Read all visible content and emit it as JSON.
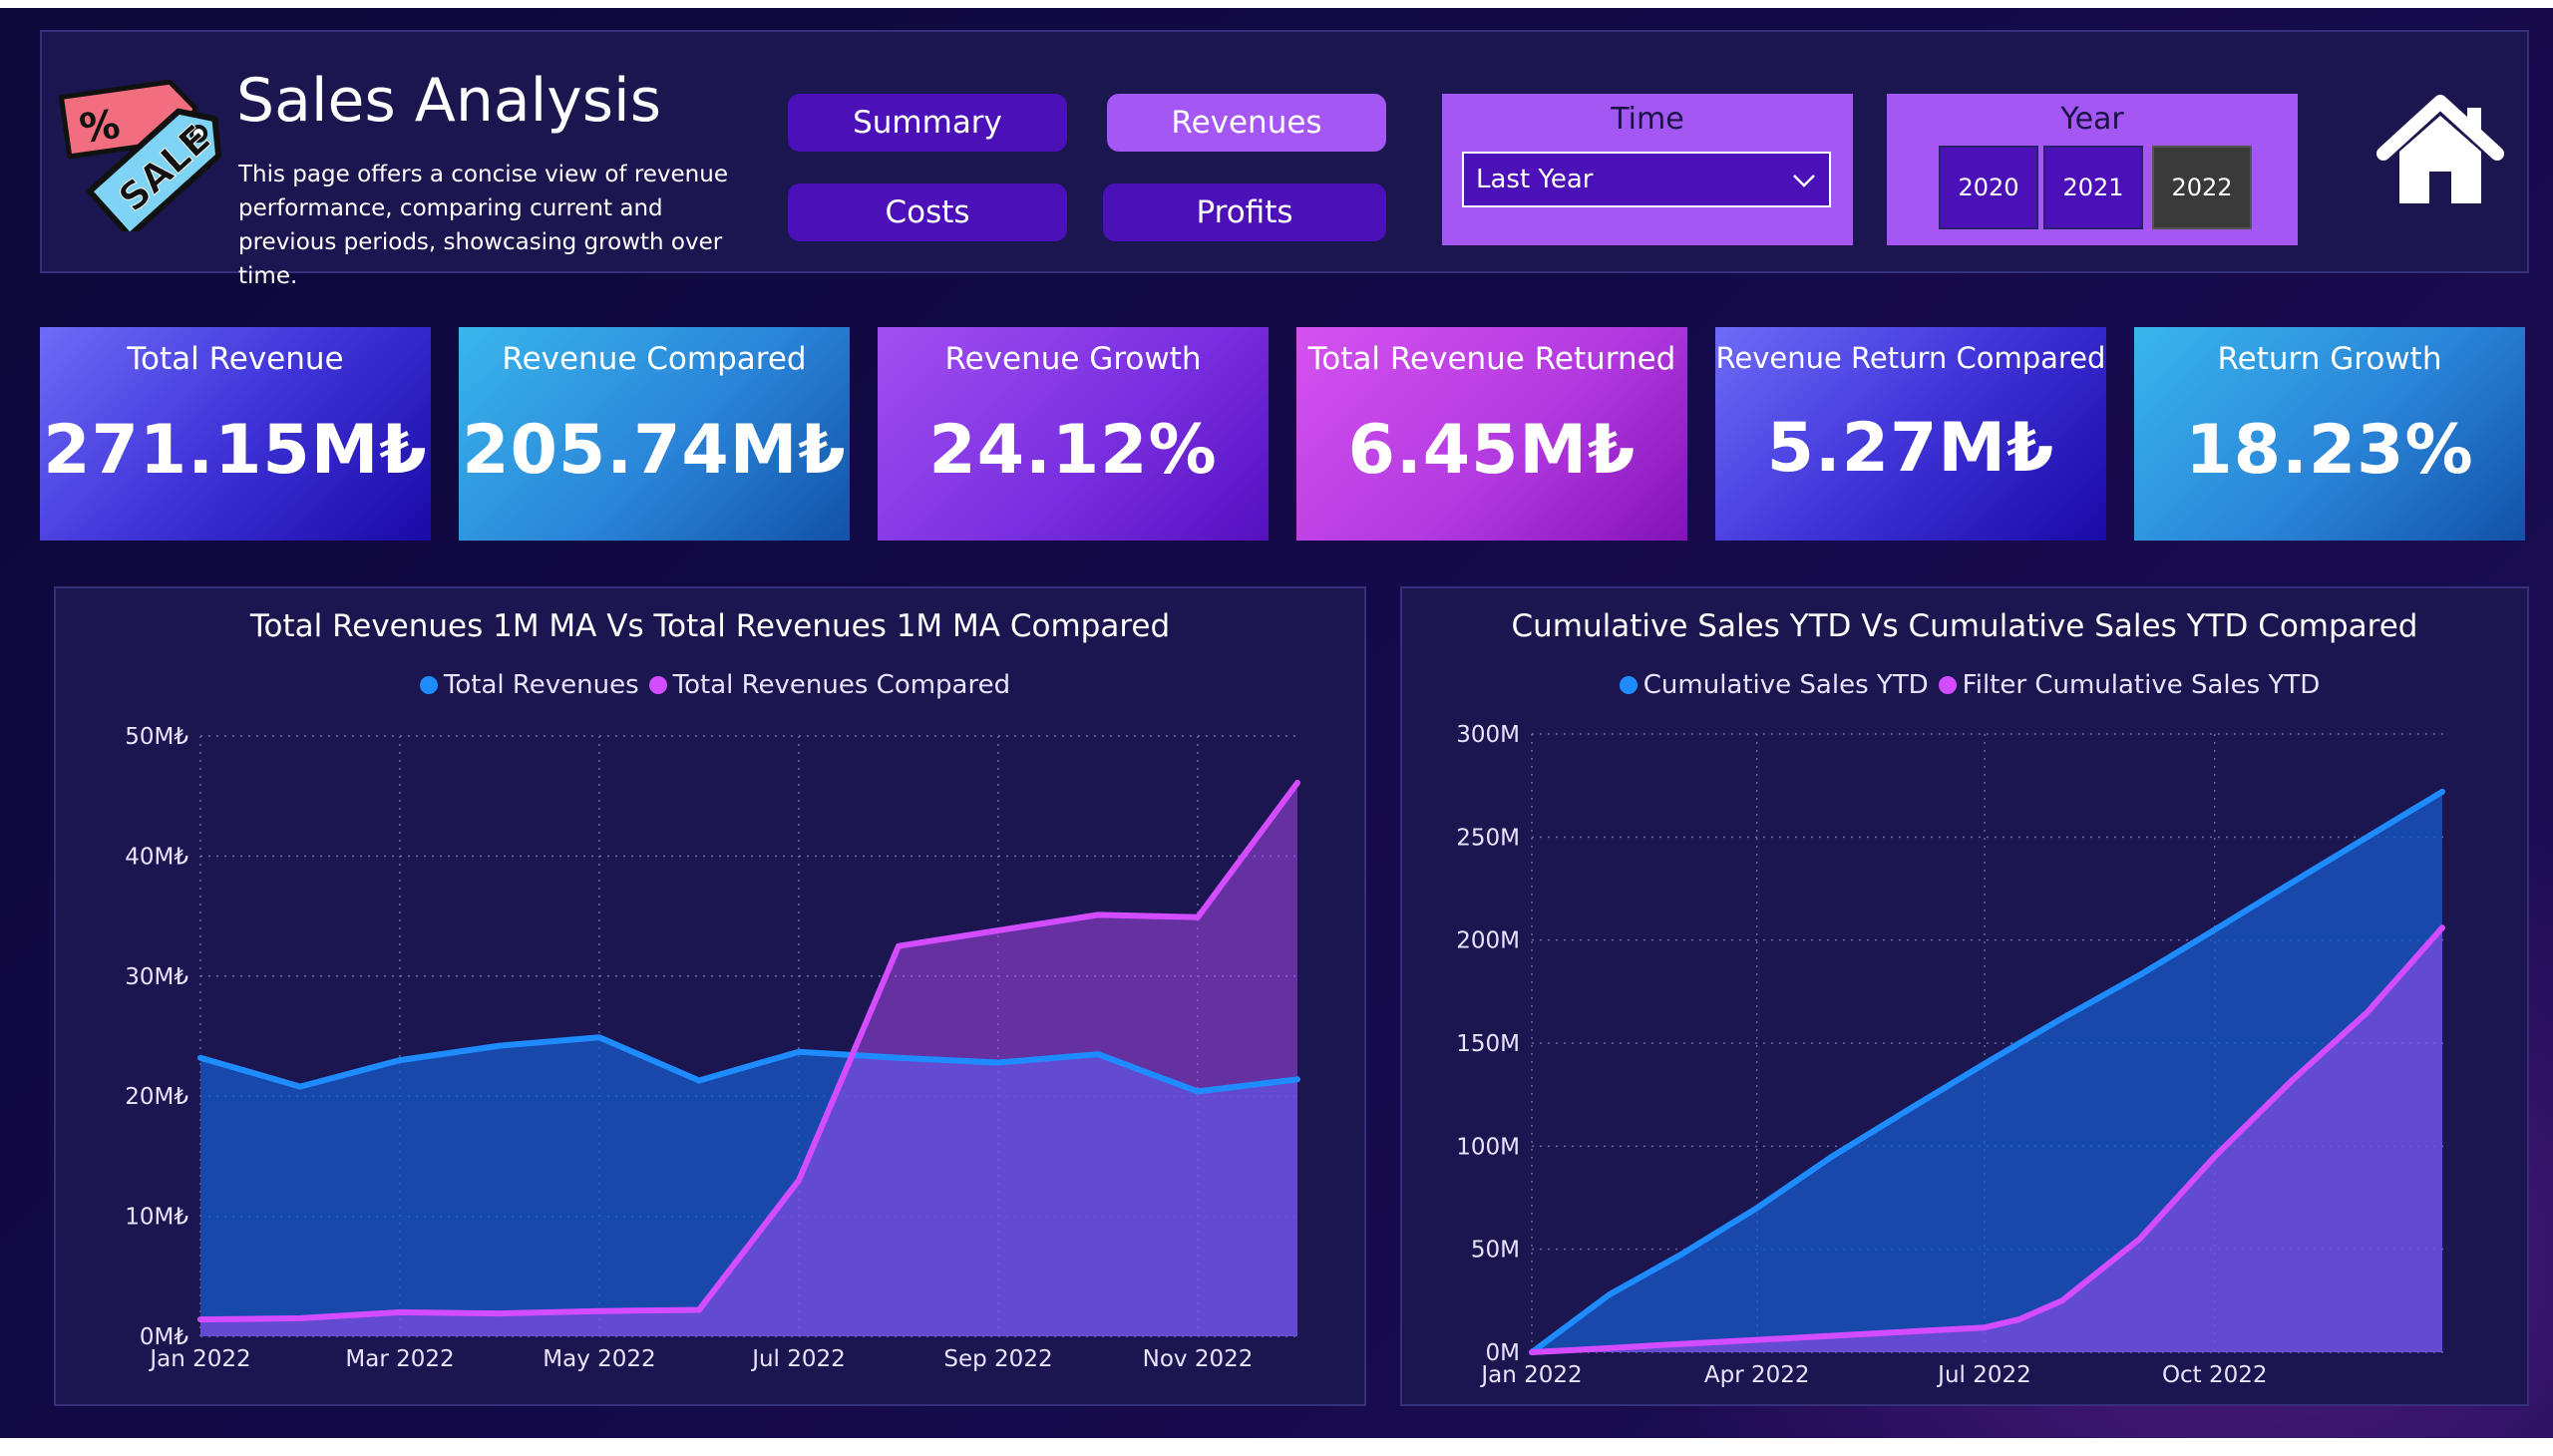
{
  "header": {
    "title": "Sales Analysis",
    "description": "This page offers a concise view of revenue performance, comparing current and previous periods, showcasing growth over time.",
    "logo_icon": "sale-tag-icon",
    "home_icon": "home-icon"
  },
  "nav": {
    "summary": "Summary",
    "revenues": "Revenues",
    "costs": "Costs",
    "profits": "Profits",
    "active": "Revenues"
  },
  "filters": {
    "time_label": "Time",
    "time_value": "Last Year",
    "year_label": "Year",
    "years": [
      "2020",
      "2021",
      "2022"
    ],
    "selected_year": "2022"
  },
  "kpis": [
    {
      "label": "Total Revenue",
      "value": "271.15M₺"
    },
    {
      "label": "Revenue Compared",
      "value": "205.74M₺"
    },
    {
      "label": "Revenue Growth",
      "value": "24.12%"
    },
    {
      "label": "Total Revenue Returned",
      "value": "6.45M₺"
    },
    {
      "label": "Revenue Return Compared",
      "value": "5.27M₺"
    },
    {
      "label": "Return Growth",
      "value": "18.23%"
    }
  ],
  "colors": {
    "series_blue": "#1e8cff",
    "series_pink": "#d44cff",
    "accent_purple": "#a557f4",
    "button_purple": "#4b10b8"
  },
  "chart_data": [
    {
      "type": "area",
      "title": "Total Revenues 1M MA Vs Total Revenues 1M MA Compared",
      "xlabel": "",
      "ylabel": "",
      "x": [
        "Jan 2022",
        "Feb 2022",
        "Mar 2022",
        "Apr 2022",
        "May 2022",
        "Jun 2022",
        "Jul 2022",
        "Aug 2022",
        "Sep 2022",
        "Oct 2022",
        "Nov 2022",
        "Dec 2022"
      ],
      "x_tick_labels": [
        "Jan 2022",
        "Mar 2022",
        "May 2022",
        "Jul 2022",
        "Sep 2022",
        "Nov 2022"
      ],
      "y_tick_labels": [
        "0M₺",
        "10M₺",
        "20M₺",
        "30M₺",
        "40M₺",
        "50M₺"
      ],
      "ylim": [
        0,
        50
      ],
      "grid": true,
      "legend_position": "top-center",
      "series": [
        {
          "name": "Total Revenues",
          "color": "#1e8cff",
          "values": [
            23.2,
            20.8,
            23.0,
            24.2,
            24.9,
            21.3,
            23.7,
            23.2,
            22.8,
            23.5,
            20.4,
            21.4
          ]
        },
        {
          "name": "Total Revenues Compared",
          "color": "#d44cff",
          "values": [
            1.4,
            1.5,
            2.0,
            1.9,
            2.1,
            2.2,
            13.0,
            32.5,
            33.8,
            35.1,
            34.9,
            46.1
          ]
        }
      ]
    },
    {
      "type": "area",
      "title": "Cumulative Sales YTD Vs Cumulative Sales YTD Compared",
      "xlabel": "",
      "ylabel": "",
      "x": [
        "2022-01-01",
        "2022-02-01",
        "2022-03-01",
        "2022-04-01",
        "2022-05-01",
        "2022-06-01",
        "2022-07-01",
        "2022-07-15",
        "2022-08-01",
        "2022-09-01",
        "2022-10-01",
        "2022-11-01",
        "2022-12-01",
        "2022-12-31"
      ],
      "x_tick_labels": [
        "Jan 2022",
        "Apr 2022",
        "Jul 2022",
        "Oct 2022"
      ],
      "y_tick_labels": [
        "0M",
        "50M",
        "100M",
        "150M",
        "200M",
        "250M",
        "300M"
      ],
      "ylim": [
        0,
        300
      ],
      "grid": true,
      "legend_position": "top-center",
      "series": [
        {
          "name": "Cumulative Sales YTD",
          "color": "#1e8cff",
          "values": [
            0,
            28,
            47,
            70,
            95,
            118,
            140,
            150,
            162,
            183,
            205,
            228,
            250,
            272
          ]
        },
        {
          "name": "Filter Cumulative Sales YTD",
          "color": "#d44cff",
          "values": [
            0,
            2,
            4,
            6,
            8,
            10,
            12,
            16,
            25,
            55,
            95,
            132,
            165,
            206
          ]
        }
      ]
    }
  ]
}
